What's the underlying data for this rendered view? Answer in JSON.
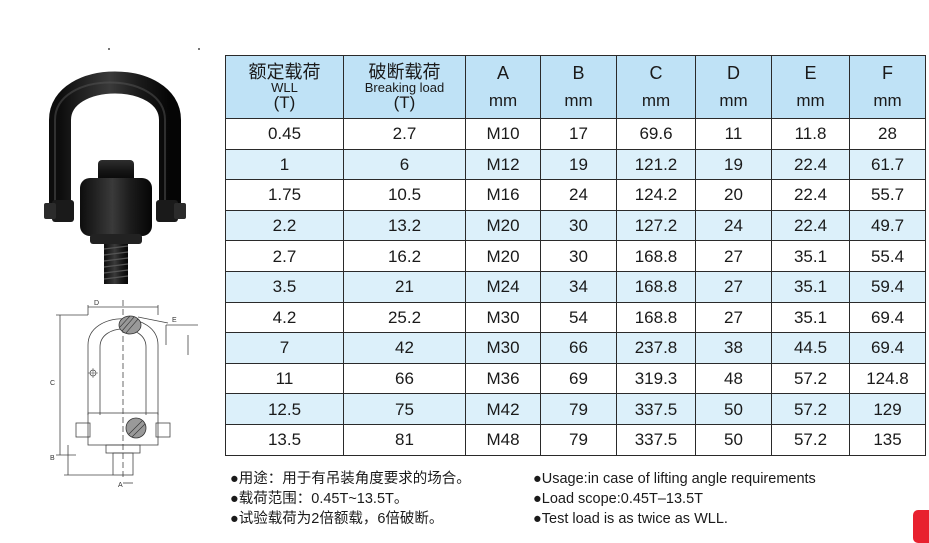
{
  "table": {
    "headers": [
      {
        "cn": "额定载荷",
        "en": "WLL",
        "unit": "(T)"
      },
      {
        "cn": "破断载荷",
        "en": "Breaking load",
        "unit": "(T)"
      },
      {
        "letter": "A",
        "unit": "mm"
      },
      {
        "letter": "B",
        "unit": "mm"
      },
      {
        "letter": "C",
        "unit": "mm"
      },
      {
        "letter": "D",
        "unit": "mm"
      },
      {
        "letter": "E",
        "unit": "mm"
      },
      {
        "letter": "F",
        "unit": "mm"
      }
    ],
    "rows": [
      [
        "0.45",
        "2.7",
        "M10",
        "17",
        "69.6",
        "11",
        "11.8",
        "28"
      ],
      [
        "1",
        "6",
        "M12",
        "19",
        "121.2",
        "19",
        "22.4",
        "61.7"
      ],
      [
        "1.75",
        "10.5",
        "M16",
        "24",
        "124.2",
        "20",
        "22.4",
        "55.7"
      ],
      [
        "2.2",
        "13.2",
        "M20",
        "30",
        "127.2",
        "24",
        "22.4",
        "49.7"
      ],
      [
        "2.7",
        "16.2",
        "M20",
        "30",
        "168.8",
        "27",
        "35.1",
        "55.4"
      ],
      [
        "3.5",
        "21",
        "M24",
        "34",
        "168.8",
        "27",
        "35.1",
        "59.4"
      ],
      [
        "4.2",
        "25.2",
        "M30",
        "54",
        "168.8",
        "27",
        "35.1",
        "69.4"
      ],
      [
        "7",
        "42",
        "M30",
        "66",
        "237.8",
        "38",
        "44.5",
        "69.4"
      ],
      [
        "11",
        "66",
        "M36",
        "69",
        "319.3",
        "48",
        "57.2",
        "124.8"
      ],
      [
        "12.5",
        "75",
        "M42",
        "79",
        "337.5",
        "50",
        "57.2",
        "129"
      ],
      [
        "13.5",
        "81",
        "M48",
        "79",
        "337.5",
        "50",
        "57.2",
        "135"
      ]
    ]
  },
  "notes_cn": [
    "●用途：用于有吊装角度要求的场合。",
    "●载荷范围：0.45T~13.5T。",
    "●试验载荷为2倍额载，6倍破断。"
  ],
  "notes_en": [
    "●Usage:in case of lifting angle requirements",
    "●Load scope:0.45T–13.5T",
    "●Test load is as twice as WLL."
  ],
  "drawing_labels": {
    "d": "D",
    "e": "E",
    "c": "C",
    "b": "B",
    "a": "A"
  },
  "colors": {
    "header_bg": "#bfe2f6",
    "stripe_bg": "#dcf0fa",
    "accent_tab": "#e8212f"
  }
}
